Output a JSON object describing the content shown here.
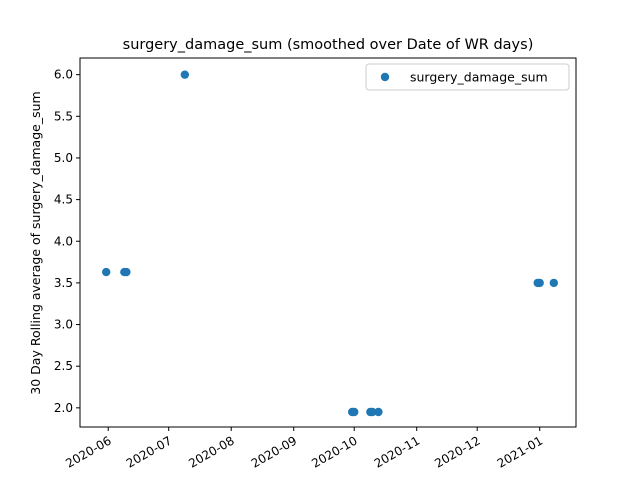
{
  "chart_data": {
    "type": "scatter",
    "title": "surgery_damage_sum (smoothed over Date of WR days)",
    "xlabel": "",
    "ylabel": "30 Day Rolling average of surgery_damage_sum",
    "xlim": [
      "2020-05-18",
      "2021-01-19"
    ],
    "ylim": [
      1.77,
      6.2
    ],
    "x_ticks": [
      "2020-06",
      "2020-07",
      "2020-08",
      "2020-09",
      "2020-10",
      "2020-11",
      "2020-12",
      "2021-01"
    ],
    "y_ticks": [
      "2.0",
      "2.5",
      "3.0",
      "3.5",
      "4.0",
      "4.5",
      "5.0",
      "5.5",
      "6.0"
    ],
    "legend": {
      "position": "top-right"
    },
    "series": [
      {
        "name": "surgery_damage_sum",
        "color": "#1f77b4",
        "x": [
          "2020-05-31",
          "2020-06-09",
          "2020-06-10",
          "2020-07-09",
          "2020-09-30",
          "2020-10-01",
          "2020-10-09",
          "2020-10-10",
          "2020-10-13",
          "2020-12-31",
          "2021-01-01",
          "2021-01-08"
        ],
        "y": [
          3.63,
          3.63,
          3.63,
          6.0,
          1.95,
          1.95,
          1.95,
          1.95,
          1.95,
          3.5,
          3.5,
          3.5
        ]
      }
    ]
  }
}
